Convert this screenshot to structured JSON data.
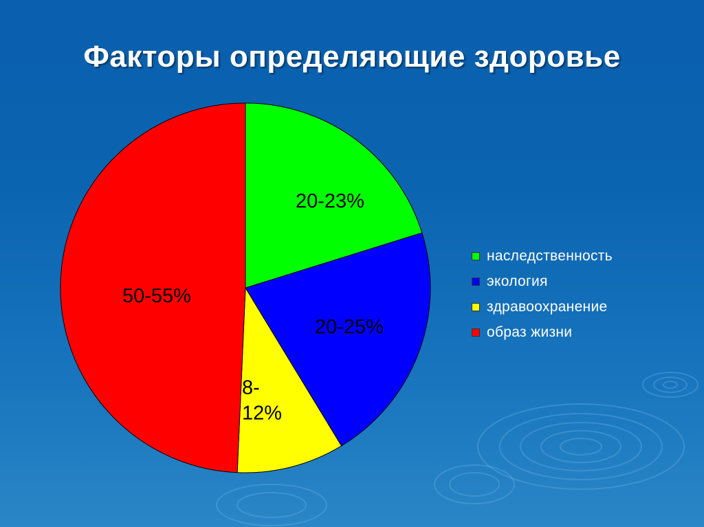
{
  "slide": {
    "title": "Факторы определяющие здоровье"
  },
  "chart_data": {
    "type": "pie",
    "title": "Факторы определяющие здоровье",
    "legend_position": "right",
    "slices": [
      {
        "name": "наследственность",
        "label": "20-23%",
        "label_lines": [
          "20-23%"
        ],
        "value": 21.5,
        "color": "#00ff00"
      },
      {
        "name": "экология",
        "label": "20-25%",
        "label_lines": [
          "20-25%"
        ],
        "value": 22.5,
        "color": "#0000ff"
      },
      {
        "name": "здравоохранение",
        "label": "8-12%",
        "label_lines": [
          "8-",
          "12%"
        ],
        "value": 10,
        "color": "#ffff00"
      },
      {
        "name": "образ жизни",
        "label": "50-55%",
        "label_lines": [
          "50-55%"
        ],
        "value": 52.5,
        "color": "#ff0000"
      }
    ]
  }
}
